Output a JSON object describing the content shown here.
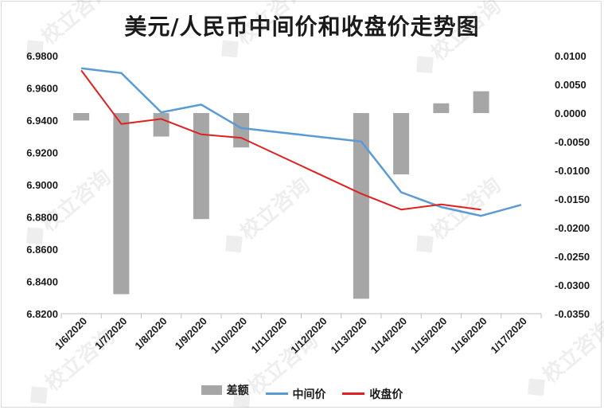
{
  "chart_data": {
    "type": "bar+line",
    "title": "美元/人民币中间价和收盘价走势图",
    "categories": [
      "1/6/2020",
      "1/7/2020",
      "1/8/2020",
      "1/9/2020",
      "1/10/2020",
      "1/11/2020",
      "1/12/2020",
      "1/13/2020",
      "1/14/2020",
      "1/15/2020",
      "1/16/2020",
      "1/17/2020"
    ],
    "y_left": {
      "min": 6.82,
      "max": 6.98,
      "step": 0.02,
      "ticks": [
        "6.9800",
        "6.9600",
        "6.9400",
        "6.9200",
        "6.9000",
        "6.8800",
        "6.8600",
        "6.8400",
        "6.8200"
      ]
    },
    "y_right": {
      "min": -0.035,
      "max": 0.01,
      "step": 0.005,
      "ticks": [
        "0.0100",
        "0.0050",
        "0.0000",
        "-0.0050",
        "-0.0100",
        "-0.0150",
        "-0.0200",
        "-0.0250",
        "-0.0300",
        "-0.0350"
      ]
    },
    "series": [
      {
        "name": "差额",
        "kind": "bar",
        "axis": "right",
        "color": "#a6a6a6",
        "values": [
          -0.0013,
          -0.0316,
          -0.0041,
          -0.0185,
          -0.006,
          null,
          null,
          -0.0324,
          -0.0107,
          0.0017,
          0.0038,
          null
        ]
      },
      {
        "name": "中间价",
        "kind": "line",
        "axis": "left",
        "color": "#5b9bd5",
        "values": [
          6.9722,
          6.9693,
          6.9449,
          6.9497,
          6.9351,
          null,
          null,
          6.9268,
          6.8953,
          6.8861,
          6.8807,
          6.8875
        ]
      },
      {
        "name": "收盘价",
        "kind": "line",
        "axis": "left",
        "color": "#e02020",
        "values": [
          6.9709,
          6.9377,
          6.9408,
          6.9312,
          6.9291,
          null,
          null,
          6.8944,
          6.8846,
          6.8878,
          6.8845,
          null
        ]
      }
    ],
    "legend_position": "bottom",
    "grid": false
  },
  "watermark": "校立咨询"
}
